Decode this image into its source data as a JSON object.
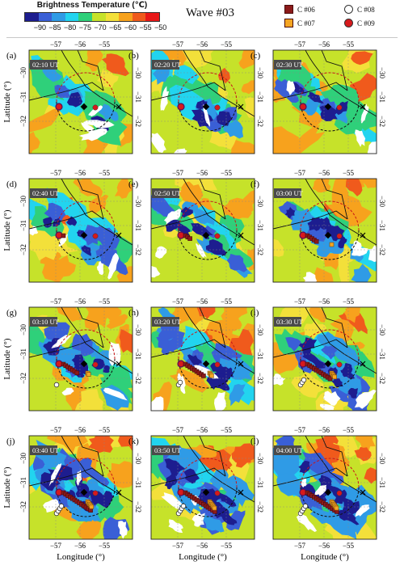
{
  "colorbar": {
    "title": "Brightness Temperature (℃)",
    "ticks": [
      "−90",
      "−85",
      "−80",
      "−75",
      "−70",
      "−65",
      "−60",
      "−55",
      "−50"
    ],
    "colors": [
      "#1d1d8f",
      "#3a5fd6",
      "#2f9be6",
      "#22d4ef",
      "#2fd07a",
      "#c6e22a",
      "#f3e03a",
      "#f7a21d",
      "#f05a1c",
      "#e81818"
    ]
  },
  "title": "Wave #03",
  "legend": [
    {
      "label": "C #06",
      "shape": "square",
      "color": "#8b1a1a"
    },
    {
      "label": "C #07",
      "shape": "square",
      "color": "#f5a623"
    },
    {
      "label": "C #08",
      "shape": "circle",
      "color": "#ffffff"
    },
    {
      "label": "C #09",
      "shape": "circle",
      "color": "#d7191c"
    }
  ],
  "axes": {
    "xlabel": "Longitude (°)",
    "ylabel": "Latitude (°)",
    "xticks": [
      "−57",
      "−56",
      "−55"
    ],
    "yticks": [
      "−30",
      "−31",
      "−32"
    ]
  },
  "chart_data": [
    {
      "type": "heatmap",
      "panel": "(a)",
      "time": "02:10 UT"
    },
    {
      "type": "heatmap",
      "panel": "(b)",
      "time": "02:20 UT"
    },
    {
      "type": "heatmap",
      "panel": "(c)",
      "time": "02:30 UT"
    },
    {
      "type": "heatmap",
      "panel": "(d)",
      "time": "02:40 UT"
    },
    {
      "type": "heatmap",
      "panel": "(e)",
      "time": "02:50 UT"
    },
    {
      "type": "heatmap",
      "panel": "(f)",
      "time": "03:00 UT"
    },
    {
      "type": "heatmap",
      "panel": "(g)",
      "time": "03:10 UT"
    },
    {
      "type": "heatmap",
      "panel": "(h)",
      "time": "03:20 UT"
    },
    {
      "type": "heatmap",
      "panel": "(i)",
      "time": "03:30 UT"
    },
    {
      "type": "heatmap",
      "panel": "(j)",
      "time": "03:40 UT"
    },
    {
      "type": "heatmap",
      "panel": "(k)",
      "time": "03:50 UT"
    },
    {
      "type": "heatmap",
      "panel": "(l)",
      "time": "04:00 UT"
    }
  ]
}
